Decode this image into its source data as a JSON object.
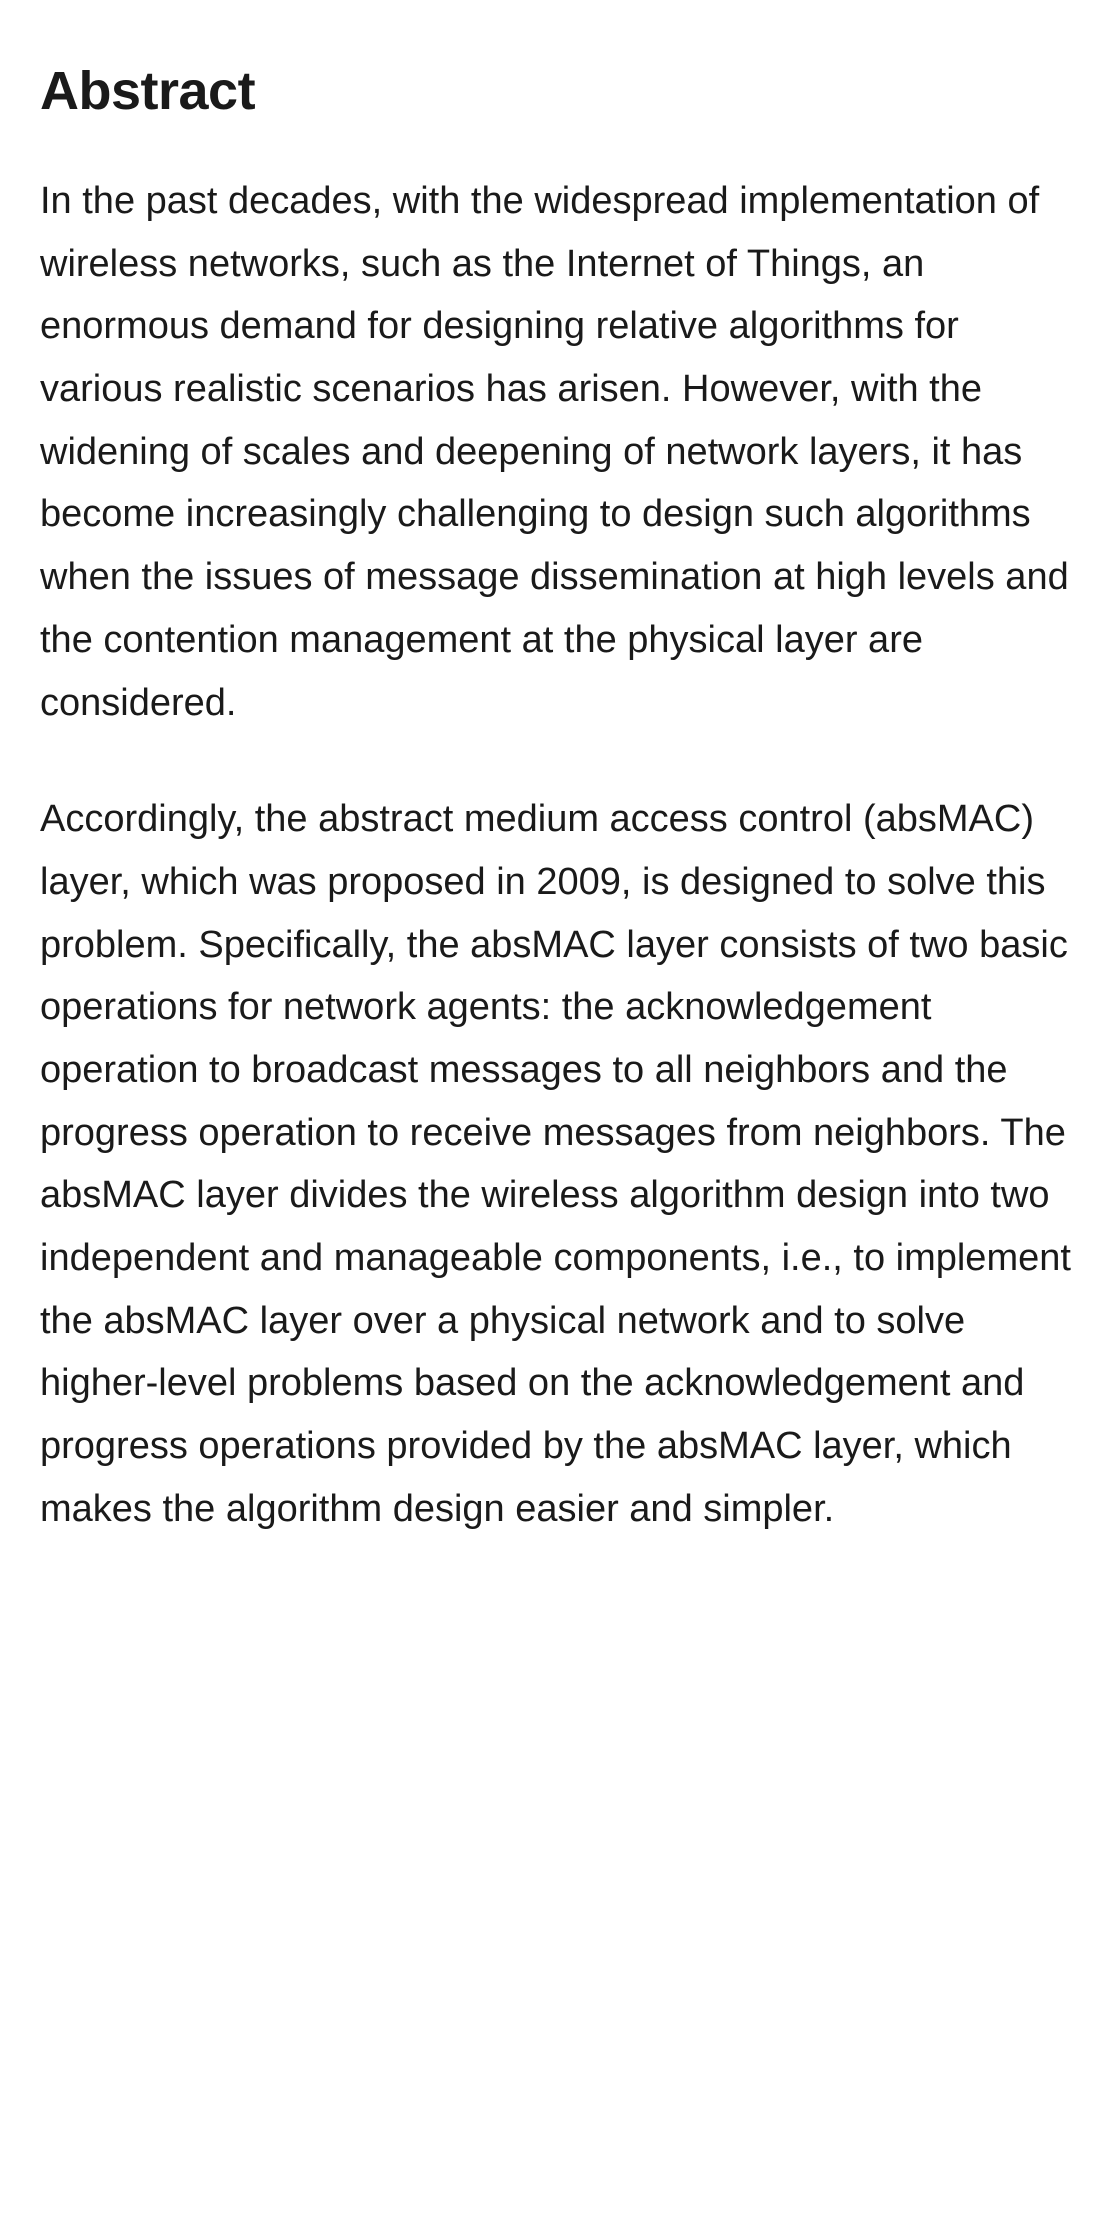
{
  "abstract": {
    "heading": "Abstract",
    "heading_fontsize": 54,
    "heading_fontweight": 700,
    "body_fontsize": 38,
    "body_lineheight": 1.65,
    "text_color": "#1a1a1a",
    "background_color": "#ffffff",
    "paragraphs": [
      "In the past decades, with the widespread implementation of wireless networks, such as the Internet of Things, an enormous demand for designing relative algorithms for various realistic scenarios has arisen. However, with the widening of scales and deepening of network layers, it has become increasingly challenging to design such algorithms when the issues of message dissemination at high levels and the contention management at the physical layer are considered.",
      "Accordingly, the abstract medium access control (absMAC) layer, which was proposed in 2009, is designed to solve this problem. Specifically, the absMAC layer consists of two basic operations for network agents: the acknowledgement operation to broadcast messages to all neighbors and the progress operation to receive messages from neighbors. The absMAC layer divides the wireless algorithm design into two independent and manageable components, i.e., to implement the absMAC layer over a physical network and to solve higher-level problems based on the acknowledgement and progress operations provided by the absMAC layer, which makes the algorithm design easier and simpler."
    ]
  }
}
